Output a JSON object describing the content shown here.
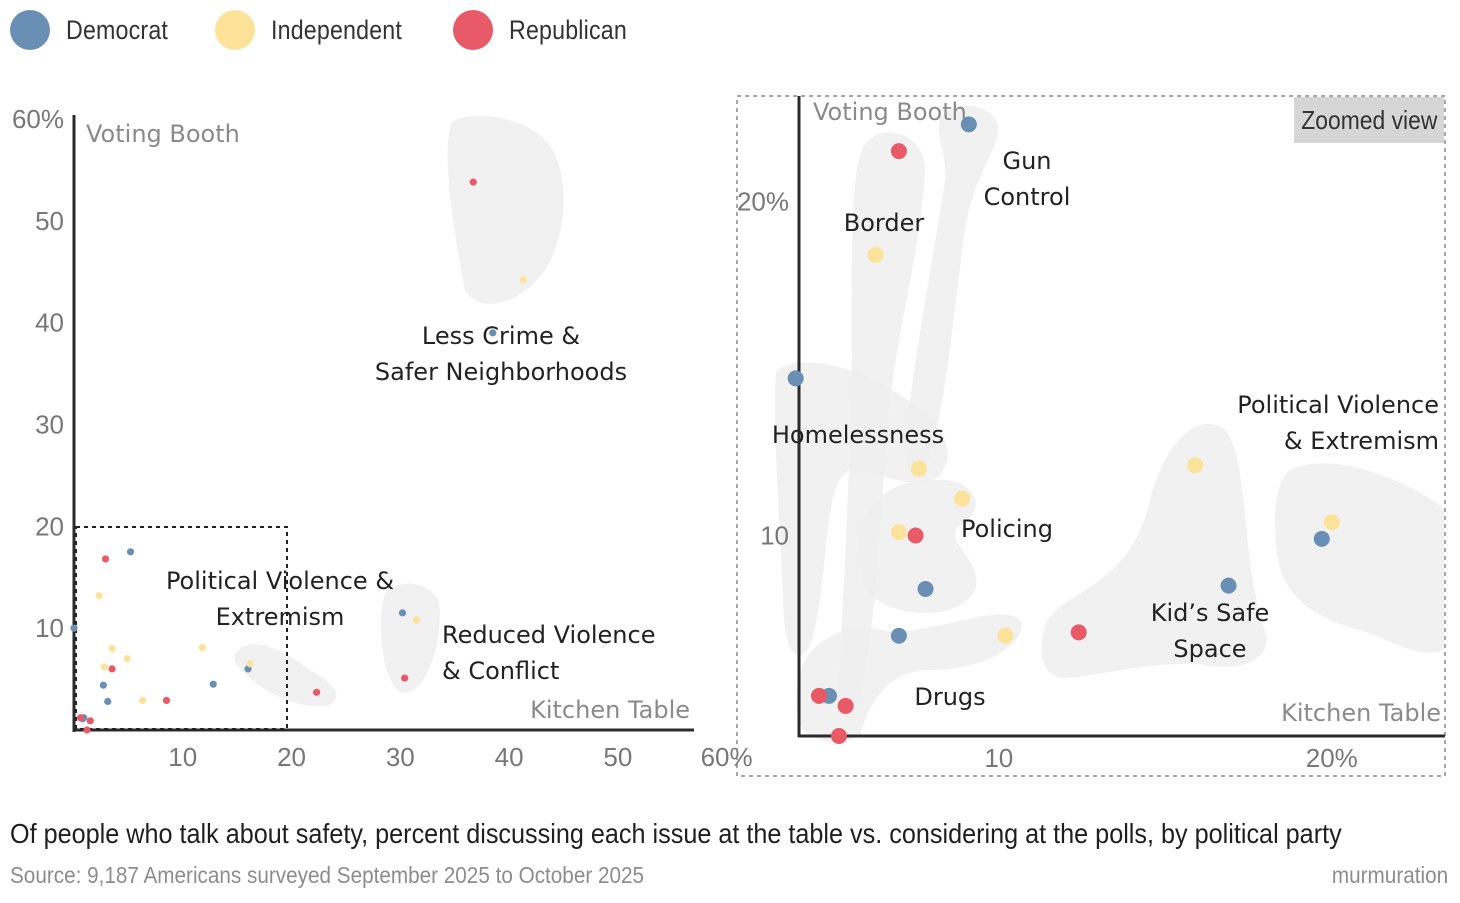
{
  "legend": {
    "items": [
      {
        "label": "Democrat",
        "color": "#6a8fb5"
      },
      {
        "label": "Independent",
        "color": "#fde39a"
      },
      {
        "label": "Republican",
        "color": "#e85a67"
      }
    ]
  },
  "caption": "Of people who talk about safety, percent discussing each issue at the table vs. considering at the polls, by political party",
  "source": "Source: 9,187 Americans surveyed September 2025 to October 2025",
  "brand": "murmuration",
  "zoom_tag": "Zoomed view",
  "chart_data": [
    {
      "type": "scatter",
      "panel": "main",
      "xlabel": "Kitchen Table",
      "ylabel": "Voting Booth",
      "xlim": [
        0,
        57
      ],
      "ylim": [
        0,
        60
      ],
      "xticks": [
        {
          "value": 10,
          "label": "10"
        },
        {
          "value": 20,
          "label": "20"
        },
        {
          "value": 30,
          "label": "30"
        },
        {
          "value": 40,
          "label": "40"
        },
        {
          "value": 50,
          "label": "50"
        },
        {
          "value": 60,
          "label": "60%"
        }
      ],
      "yticks": [
        {
          "value": 10,
          "label": "10"
        },
        {
          "value": 20,
          "label": "20"
        },
        {
          "value": 30,
          "label": "30"
        },
        {
          "value": 40,
          "label": "40"
        },
        {
          "value": 50,
          "label": "50"
        },
        {
          "value": 60,
          "label": "60%"
        }
      ],
      "cluster_labels": [
        {
          "lines": [
            "Less Crime &",
            "Safer Neighborhoods"
          ]
        },
        {
          "lines": [
            "Political Violence &",
            "Extremism"
          ]
        },
        {
          "lines": [
            "Reduced Violence",
            "& Conflict"
          ]
        }
      ],
      "series": [
        {
          "name": "Democrat",
          "color": "#6a8fb5",
          "points": [
            {
              "x": 38.5,
              "y": 39.0
            },
            {
              "x": 30.2,
              "y": 11.5
            },
            {
              "x": 16.0,
              "y": 6.0
            },
            {
              "x": 12.8,
              "y": 4.5
            },
            {
              "x": 5.2,
              "y": 17.5
            },
            {
              "x": 2.7,
              "y": 4.4
            },
            {
              "x": 0.0,
              "y": 10.0
            },
            {
              "x": 3.1,
              "y": 2.8
            },
            {
              "x": 0.9,
              "y": 1.2
            },
            {
              "x": 0.8,
              "y": 1.1
            }
          ]
        },
        {
          "name": "Independent",
          "color": "#fde39a",
          "points": [
            {
              "x": 41.3,
              "y": 44.2
            },
            {
              "x": 31.5,
              "y": 10.8
            },
            {
              "x": 16.2,
              "y": 6.5
            },
            {
              "x": 11.8,
              "y": 8.1
            },
            {
              "x": 2.3,
              "y": 13.2
            },
            {
              "x": 3.5,
              "y": 8.0
            },
            {
              "x": 4.9,
              "y": 7.0
            },
            {
              "x": 2.8,
              "y": 6.2
            },
            {
              "x": 6.3,
              "y": 2.9
            }
          ]
        },
        {
          "name": "Republican",
          "color": "#e85a67",
          "points": [
            {
              "x": 36.7,
              "y": 53.8
            },
            {
              "x": 30.4,
              "y": 5.1
            },
            {
              "x": 22.3,
              "y": 3.7
            },
            {
              "x": 8.5,
              "y": 2.9
            },
            {
              "x": 2.9,
              "y": 16.8
            },
            {
              "x": 3.5,
              "y": 6.0
            },
            {
              "x": 0.6,
              "y": 1.2
            },
            {
              "x": 1.5,
              "y": 0.9
            },
            {
              "x": 1.2,
              "y": 0.0
            }
          ]
        }
      ]
    },
    {
      "type": "scatter",
      "panel": "zoomed",
      "label": "Zoomed view",
      "xlabel": "Kitchen Table",
      "ylabel": "Voting Booth",
      "xlim": [
        4,
        23.4
      ],
      "ylim": [
        4,
        23
      ],
      "xticks": [
        {
          "value": 10,
          "label": "10"
        },
        {
          "value": 20,
          "label": "20%"
        }
      ],
      "yticks": [
        {
          "value": 10,
          "label": "10"
        },
        {
          "value": 20,
          "label": "20%"
        }
      ],
      "cluster_labels": [
        {
          "lines": [
            "Gun",
            "Control"
          ]
        },
        {
          "lines": [
            "Border"
          ]
        },
        {
          "lines": [
            "Homelessness"
          ]
        },
        {
          "lines": [
            "Policing"
          ]
        },
        {
          "lines": [
            "Drugs"
          ]
        },
        {
          "lines": [
            "Kid’s Safe",
            "Space"
          ]
        },
        {
          "lines": [
            "Political Violence",
            "& Extremism"
          ]
        }
      ],
      "series": [
        {
          "name": "Democrat",
          "color": "#6a8fb5",
          "points": [
            {
              "x": 9.1,
              "y": 22.3
            },
            {
              "x": 3.9,
              "y": 14.7
            },
            {
              "x": 7.8,
              "y": 8.4
            },
            {
              "x": 7.0,
              "y": 7.0
            },
            {
              "x": 4.9,
              "y": 5.2
            },
            {
              "x": 16.9,
              "y": 8.5
            },
            {
              "x": 19.7,
              "y": 9.9
            }
          ]
        },
        {
          "name": "Independent",
          "color": "#fde39a",
          "points": [
            {
              "x": 6.3,
              "y": 18.4
            },
            {
              "x": 7.6,
              "y": 12.0
            },
            {
              "x": 8.9,
              "y": 11.1
            },
            {
              "x": 7.0,
              "y": 10.1
            },
            {
              "x": 10.2,
              "y": 7.0
            },
            {
              "x": 15.9,
              "y": 12.1
            },
            {
              "x": 20.0,
              "y": 10.4
            }
          ]
        },
        {
          "name": "Republican",
          "color": "#e85a67",
          "points": [
            {
              "x": 7.0,
              "y": 21.5
            },
            {
              "x": 7.5,
              "y": 10.0
            },
            {
              "x": 12.4,
              "y": 7.1
            },
            {
              "x": 4.6,
              "y": 5.2
            },
            {
              "x": 5.4,
              "y": 4.9
            },
            {
              "x": 5.2,
              "y": 4.0
            }
          ]
        }
      ]
    }
  ]
}
